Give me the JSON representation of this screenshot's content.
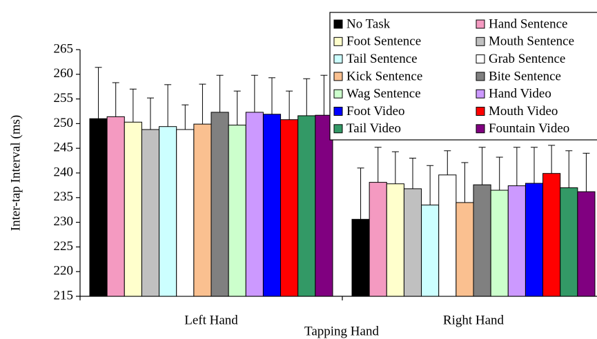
{
  "chart_data": {
    "type": "bar",
    "ylabel": "Inter-tap Interval (ms)",
    "xlabel": "Tapping Hand",
    "categories": [
      "Left Hand",
      "Right Hand"
    ],
    "ylim": [
      215,
      265
    ],
    "yticks": [
      215,
      220,
      225,
      230,
      235,
      240,
      245,
      250,
      255,
      260,
      265
    ],
    "legend": "top-right",
    "series": [
      {
        "name": "No Task",
        "color": "#000000",
        "values": [
          251.0,
          230.6
        ],
        "errors": [
          10.4,
          10.4
        ]
      },
      {
        "name": "Hand Sentence",
        "color": "#f49ac1",
        "values": [
          251.4,
          238.1
        ],
        "errors": [
          6.9,
          7.1
        ]
      },
      {
        "name": "Foot Sentence",
        "color": "#ffffcc",
        "values": [
          250.3,
          237.8
        ],
        "errors": [
          6.7,
          6.5
        ]
      },
      {
        "name": "Mouth Sentence",
        "color": "#c0c0c0",
        "values": [
          248.8,
          236.8
        ],
        "errors": [
          6.4,
          6.2
        ]
      },
      {
        "name": "Tail Sentence",
        "color": "#ccffff",
        "values": [
          249.4,
          233.5
        ],
        "errors": [
          8.5,
          8.0
        ]
      },
      {
        "name": "Grab Sentence",
        "color": "#ffffff",
        "values": [
          248.8,
          239.6
        ],
        "errors": [
          5.0,
          4.9
        ]
      },
      {
        "name": "Kick Sentence",
        "color": "#fac090",
        "values": [
          249.9,
          234.0
        ],
        "errors": [
          8.1,
          8.1
        ]
      },
      {
        "name": "Bite Sentence",
        "color": "#808080",
        "values": [
          252.3,
          237.6
        ],
        "errors": [
          7.5,
          7.6
        ]
      },
      {
        "name": "Wag Sentence",
        "color": "#ccffcc",
        "values": [
          249.7,
          236.5
        ],
        "errors": [
          6.9,
          6.7
        ]
      },
      {
        "name": "Hand Video",
        "color": "#cc99ff",
        "values": [
          252.3,
          237.4
        ],
        "errors": [
          7.5,
          7.8
        ]
      },
      {
        "name": "Foot Video",
        "color": "#0000ff",
        "values": [
          251.9,
          237.9
        ],
        "errors": [
          7.4,
          7.3
        ]
      },
      {
        "name": "Mouth Video",
        "color": "#ff0000",
        "values": [
          250.8,
          239.9
        ],
        "errors": [
          5.8,
          5.7
        ]
      },
      {
        "name": "Tail Video",
        "color": "#339966",
        "values": [
          251.6,
          237.0
        ],
        "errors": [
          7.5,
          7.5
        ]
      },
      {
        "name": "Fountain Video",
        "color": "#800080",
        "values": [
          251.7,
          236.2
        ],
        "errors": [
          8.1,
          7.8
        ]
      }
    ]
  }
}
